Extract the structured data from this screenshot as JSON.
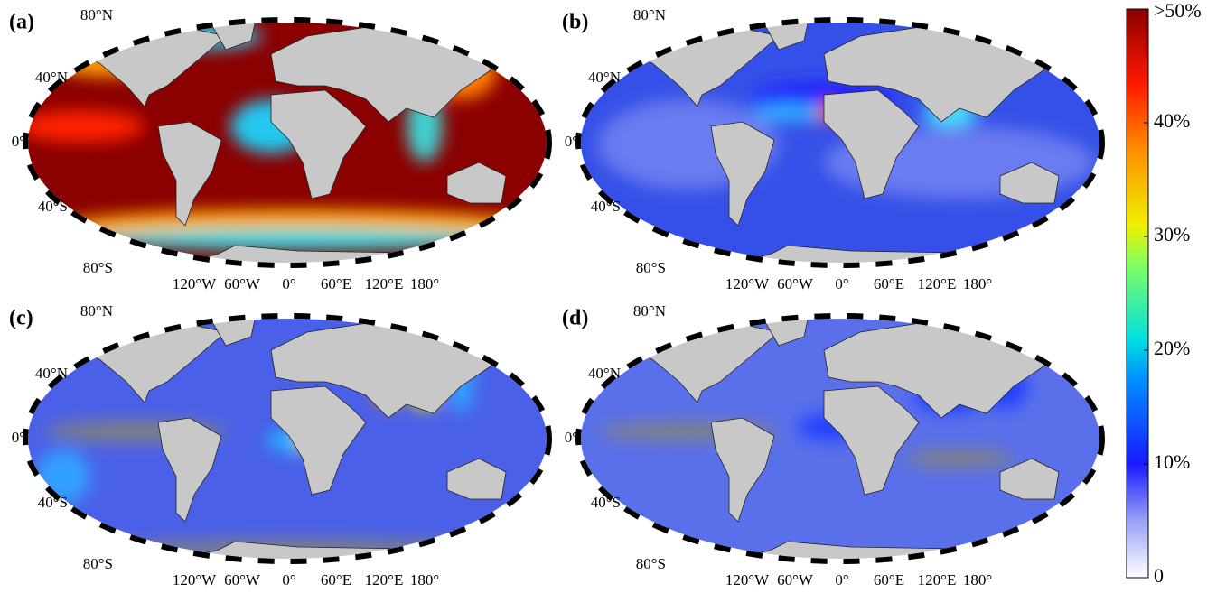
{
  "panels": [
    {
      "label": "(a)",
      "lat_labels": [
        "80°N",
        "40°N",
        "0°",
        "40°S",
        "80°S"
      ],
      "lon_labels": [
        "120°W",
        "60°W",
        "0°",
        "60°E",
        "120°E",
        "180°"
      ]
    },
    {
      "label": "(b)",
      "lat_labels": [
        "80°N",
        "40°N",
        "0°",
        "40°S",
        "80°S"
      ],
      "lon_labels": [
        "120°W",
        "60°W",
        "0°",
        "60°E",
        "120°E",
        "180°"
      ]
    },
    {
      "label": "(c)",
      "lat_labels": [
        "80°N",
        "40°N",
        "0°",
        "40°S",
        "80°S"
      ],
      "lon_labels": [
        "120°W",
        "60°W",
        "0°",
        "60°E",
        "120°E",
        "180°"
      ]
    },
    {
      "label": "(d)",
      "lat_labels": [
        "80°N",
        "40°N",
        "0°",
        "40°S",
        "80°S"
      ],
      "lon_labels": [
        "120°W",
        "60°W",
        "0°",
        "60°E",
        "120°E",
        "180°"
      ]
    }
  ],
  "colorbar": {
    "range": [
      0,
      50
    ],
    "ticks": [
      0,
      {
        "value": 10,
        "label": "10%"
      },
      {
        "value": 20,
        "label": "20%"
      },
      {
        "value": 30,
        "label": "30%"
      },
      {
        "value": 40,
        "label": "40%"
      },
      {
        "value": 50,
        "label": ">50%"
      }
    ]
  }
}
